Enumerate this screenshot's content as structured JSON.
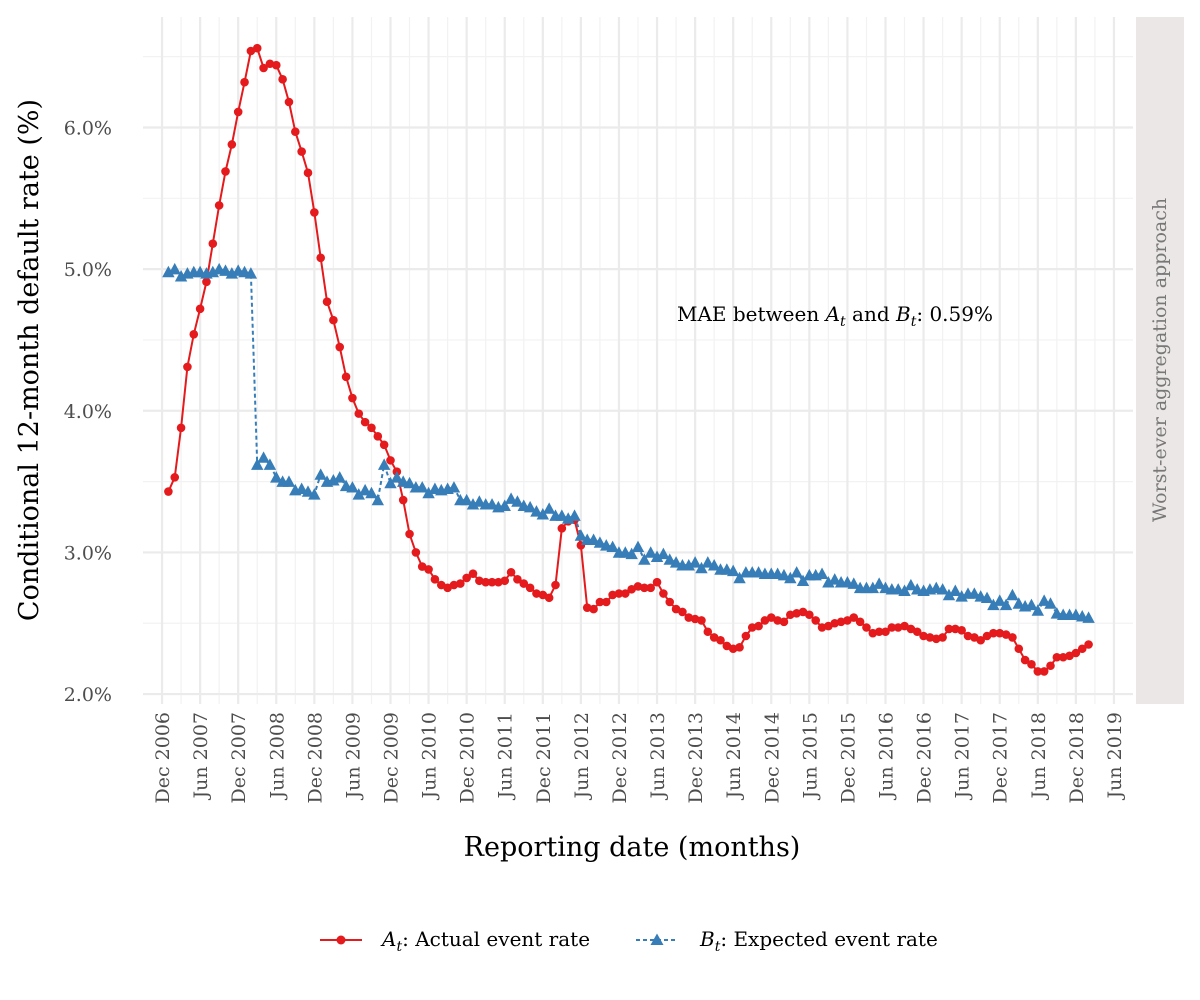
{
  "chart_data": {
    "type": "line",
    "panel_label": "Worst-ever aggregation approach",
    "xlabel": "Reporting date (months)",
    "ylabel": "Conditional 12-month default rate (%)",
    "x_tick_labels": [
      "Dec 2006",
      "Jun 2007",
      "Dec 2007",
      "Jun 2008",
      "Dec 2008",
      "Jun 2009",
      "Dec 2009",
      "Jun 2010",
      "Dec 2010",
      "Jun 2011",
      "Dec 2011",
      "Jun 2012",
      "Dec 2012",
      "Jun 2013",
      "Dec 2013",
      "Jun 2014",
      "Dec 2014",
      "Jun 2015",
      "Dec 2015",
      "Jun 2016",
      "Dec 2016",
      "Jun 2017",
      "Dec 2017",
      "Jun 2018",
      "Dec 2018",
      "Jun 2019"
    ],
    "y_ticks": [
      2.0,
      3.0,
      4.0,
      5.0,
      6.0
    ],
    "y_tick_labels": [
      "2.0%",
      "3.0%",
      "4.0%",
      "5.0%",
      "6.0%"
    ],
    "x_range": [
      "2006-09",
      "2019-09"
    ],
    "ylim": [
      1.93,
      6.78
    ],
    "x_start": "2007-01",
    "annotation": {
      "prefix": "MAE between ",
      "a": "A",
      "sub_a": "t",
      "mid": " and ",
      "b": "B",
      "sub_b": "t",
      "suffix": ": 0.59%"
    },
    "legend_position": "bottom",
    "grid": true,
    "series": [
      {
        "name_symbol": "A",
        "name_sub": "t",
        "name_text": ": Actual event rate",
        "color": "#e41a1c",
        "line": "solid",
        "marker": "circle",
        "values": [
          3.43,
          3.53,
          3.88,
          4.31,
          4.54,
          4.72,
          4.91,
          5.18,
          5.45,
          5.69,
          5.88,
          6.11,
          6.32,
          6.54,
          6.56,
          6.42,
          6.45,
          6.44,
          6.34,
          6.18,
          5.97,
          5.83,
          5.68,
          5.4,
          5.08,
          4.77,
          4.64,
          4.45,
          4.24,
          4.09,
          3.98,
          3.92,
          3.88,
          3.82,
          3.76,
          3.65,
          3.57,
          3.37,
          3.13,
          3.0,
          2.9,
          2.88,
          2.81,
          2.77,
          2.75,
          2.77,
          2.78,
          2.82,
          2.85,
          2.8,
          2.79,
          2.79,
          2.79,
          2.8,
          2.86,
          2.81,
          2.78,
          2.75,
          2.71,
          2.7,
          2.68,
          2.77,
          3.17,
          3.22,
          3.23,
          3.05,
          2.61,
          2.6,
          2.65,
          2.65,
          2.7,
          2.71,
          2.71,
          2.74,
          2.76,
          2.75,
          2.75,
          2.79,
          2.71,
          2.65,
          2.6,
          2.58,
          2.54,
          2.53,
          2.52,
          2.44,
          2.4,
          2.38,
          2.34,
          2.32,
          2.33,
          2.41,
          2.47,
          2.48,
          2.52,
          2.54,
          2.52,
          2.51,
          2.56,
          2.57,
          2.58,
          2.56,
          2.52,
          2.47,
          2.48,
          2.5,
          2.51,
          2.52,
          2.54,
          2.51,
          2.47,
          2.43,
          2.44,
          2.44,
          2.47,
          2.47,
          2.48,
          2.46,
          2.44,
          2.41,
          2.4,
          2.39,
          2.4,
          2.46,
          2.46,
          2.45,
          2.41,
          2.4,
          2.38,
          2.41,
          2.43,
          2.43,
          2.42,
          2.4,
          2.32,
          2.24,
          2.21,
          2.16,
          2.16,
          2.2,
          2.26,
          2.26,
          2.27,
          2.29,
          2.32,
          2.35
        ]
      },
      {
        "name_symbol": "B",
        "name_sub": "t",
        "name_text": ": Expected event rate",
        "color": "#377eb8",
        "line": "dashed",
        "marker": "triangle",
        "values": [
          4.98,
          5.0,
          4.95,
          4.97,
          4.98,
          4.98,
          4.97,
          4.98,
          5.0,
          4.99,
          4.97,
          4.99,
          4.98,
          4.97,
          3.62,
          3.67,
          3.62,
          3.53,
          3.5,
          3.5,
          3.44,
          3.45,
          3.43,
          3.41,
          3.55,
          3.5,
          3.51,
          3.53,
          3.47,
          3.46,
          3.41,
          3.44,
          3.42,
          3.37,
          3.62,
          3.49,
          3.53,
          3.5,
          3.49,
          3.46,
          3.46,
          3.42,
          3.45,
          3.44,
          3.45,
          3.46,
          3.37,
          3.37,
          3.34,
          3.36,
          3.34,
          3.34,
          3.32,
          3.33,
          3.38,
          3.36,
          3.33,
          3.32,
          3.29,
          3.27,
          3.31,
          3.26,
          3.26,
          3.24,
          3.26,
          3.12,
          3.09,
          3.09,
          3.07,
          3.05,
          3.04,
          3.0,
          3.0,
          2.99,
          3.04,
          2.95,
          3.0,
          2.97,
          2.99,
          2.95,
          2.93,
          2.91,
          2.91,
          2.93,
          2.89,
          2.93,
          2.91,
          2.88,
          2.88,
          2.87,
          2.82,
          2.86,
          2.86,
          2.86,
          2.85,
          2.85,
          2.85,
          2.84,
          2.82,
          2.86,
          2.8,
          2.84,
          2.84,
          2.85,
          2.79,
          2.81,
          2.79,
          2.79,
          2.78,
          2.75,
          2.75,
          2.75,
          2.78,
          2.75,
          2.74,
          2.74,
          2.73,
          2.77,
          2.74,
          2.73,
          2.74,
          2.75,
          2.74,
          2.7,
          2.73,
          2.69,
          2.71,
          2.71,
          2.69,
          2.68,
          2.63,
          2.66,
          2.63,
          2.7,
          2.64,
          2.62,
          2.63,
          2.59,
          2.66,
          2.64,
          2.57,
          2.56,
          2.56,
          2.56,
          2.55,
          2.54
        ]
      }
    ]
  }
}
